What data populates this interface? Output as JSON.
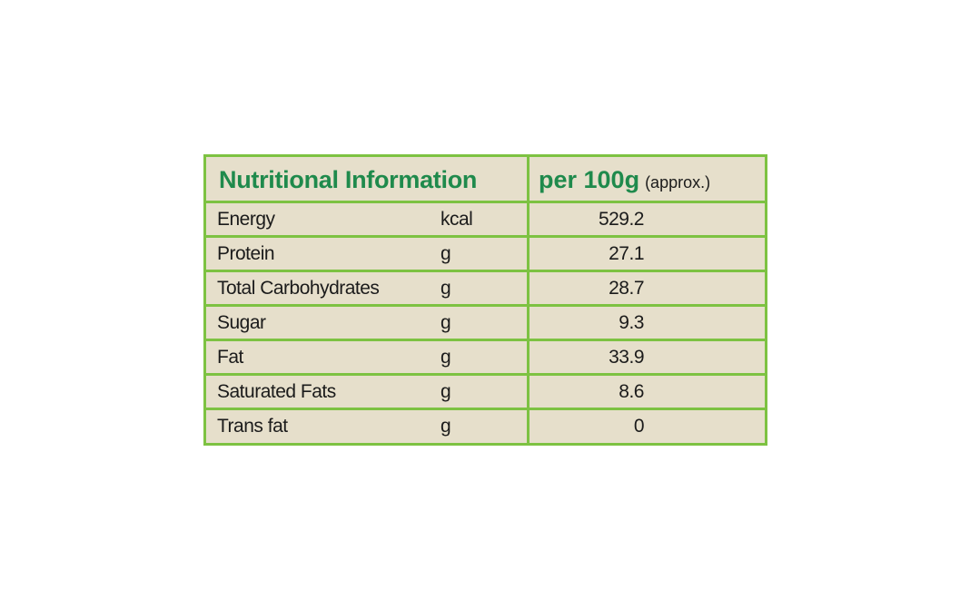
{
  "header": {
    "title": "Nutritional Information",
    "per": "per 100g",
    "note": "(approx.)"
  },
  "table": {
    "rows": [
      [
        "Energy",
        "kcal",
        "529.2"
      ],
      [
        "Protein",
        "g",
        "27.1"
      ],
      [
        "Total Carbohydrates",
        "g",
        "28.7"
      ],
      [
        "Sugar",
        "g",
        "9.3"
      ],
      [
        "Fat",
        "g",
        "33.9"
      ],
      [
        "Saturated Fats",
        "g",
        "8.6"
      ],
      [
        "Trans fat",
        "g",
        "0"
      ]
    ]
  }
}
